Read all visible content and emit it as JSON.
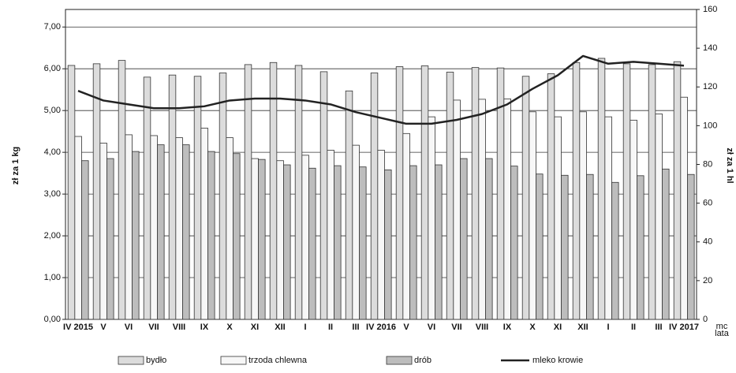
{
  "chart_data": {
    "type": "bar",
    "categories": [
      "IV 2015",
      "V",
      "VI",
      "VII",
      "VIII",
      "IX",
      "X",
      "XI",
      "XII",
      "I",
      "II",
      "III",
      "IV 2016",
      "V",
      "VI",
      "VII",
      "VIII",
      "IX",
      "X",
      "XI",
      "XII",
      "I",
      "II",
      "III",
      "IV 2017"
    ],
    "x_label_lines": [
      "mc",
      "lata"
    ],
    "y_label": "zł za 1 kg",
    "y2_label": "zł za 1 hl",
    "series": [
      {
        "name": "bydło",
        "color": "#dcdcdc",
        "values": [
          6.08,
          6.12,
          6.2,
          5.8,
          5.85,
          5.82,
          5.9,
          6.1,
          6.15,
          6.08,
          5.93,
          5.47,
          5.9,
          6.05,
          6.07,
          5.92,
          6.03,
          6.02,
          5.82,
          5.88,
          6.15,
          6.25,
          6.12,
          6.1,
          6.17
        ]
      },
      {
        "name": "trzoda chlewna",
        "color": "#f7f7f7",
        "values": [
          4.38,
          4.22,
          4.42,
          4.4,
          4.35,
          4.58,
          4.35,
          3.85,
          3.8,
          3.93,
          4.05,
          4.17,
          4.05,
          4.45,
          4.85,
          5.25,
          5.27,
          5.28,
          4.97,
          4.85,
          4.97,
          4.85,
          4.77,
          4.92,
          5.32
        ]
      },
      {
        "name": "drób",
        "color": "#bdbdbd",
        "values": [
          3.8,
          3.85,
          4.02,
          4.18,
          4.18,
          4.02,
          3.97,
          3.83,
          3.7,
          3.62,
          3.68,
          3.65,
          3.58,
          3.68,
          3.7,
          3.85,
          3.85,
          3.67,
          3.48,
          3.45,
          3.47,
          3.28,
          3.44,
          3.6,
          3.47
        ]
      },
      {
        "name": "mleko krowie",
        "color": "#222222",
        "axis": "y2",
        "values": [
          118,
          113,
          111,
          109,
          109,
          110,
          113,
          114,
          114,
          113,
          111,
          107,
          104,
          101,
          101,
          103,
          106,
          111,
          119,
          126,
          136,
          132,
          133,
          132,
          131
        ]
      }
    ],
    "ylim": [
      0,
      7.42
    ],
    "yticks": [
      {
        "value": 0,
        "label": "0,00"
      },
      {
        "value": 1,
        "label": "1,00"
      },
      {
        "value": 2,
        "label": "2,00"
      },
      {
        "value": 3,
        "label": "3,00"
      },
      {
        "value": 4,
        "label": "4,00"
      },
      {
        "value": 5,
        "label": "5,00"
      },
      {
        "value": 6,
        "label": "6,00"
      },
      {
        "value": 7,
        "label": "7,00"
      }
    ],
    "y2lim": [
      0,
      160
    ],
    "y2ticks": [
      0,
      20,
      40,
      60,
      80,
      100,
      120,
      140,
      160
    ],
    "grid": true
  }
}
